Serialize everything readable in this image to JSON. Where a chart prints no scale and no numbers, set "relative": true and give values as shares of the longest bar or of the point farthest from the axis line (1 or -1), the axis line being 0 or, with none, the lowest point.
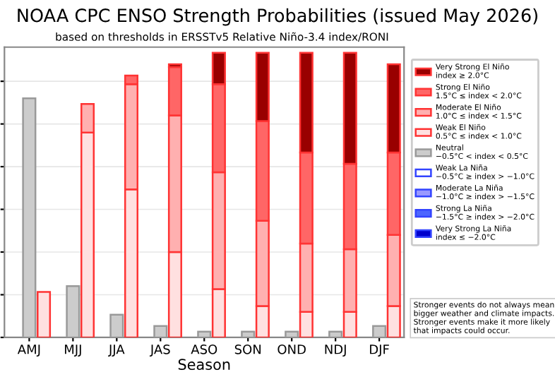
{
  "chart_data": {
    "type": "bar",
    "title": "NOAA CPC ENSO Strength Probabilities (issued May 2026)",
    "subtitle": "based on thresholds in ERSSTv5 Relative Niño-3.4 index/RONI",
    "xlabel": "Season",
    "categories": [
      null,
      "AMJ",
      null,
      null,
      "MJJ",
      null,
      null,
      "JJA",
      null,
      null,
      "JAS",
      null,
      null,
      "ASO",
      null,
      null,
      "SON",
      null,
      null,
      "OND",
      null,
      null,
      "NDJ",
      null,
      null,
      "DJF",
      null
    ],
    "stacked": true,
    "relative": true,
    "grid": "y",
    "legend": "right",
    "series": [
      {
        "name": "Weak La Niña\n−0.5°C ≥ index > −1.0°C",
        "color": "#ffffff",
        "values": [
          0,
          null,
          null,
          0,
          null,
          null,
          0,
          null,
          null,
          0,
          null,
          null,
          0,
          null,
          null,
          0,
          null,
          null,
          0,
          null,
          null,
          0,
          null,
          null,
          0,
          null,
          null
        ]
      },
      {
        "name": "Moderate La Niña\n−1.0°C ≥ index > −1.5°C",
        "color": "#9999ff",
        "values": [
          0,
          null,
          null,
          0,
          null,
          null,
          0,
          null,
          null,
          0,
          null,
          null,
          0,
          null,
          null,
          0,
          null,
          null,
          0,
          null,
          null,
          0,
          null,
          null,
          0,
          null,
          null
        ]
      },
      {
        "name": "Strong La Niña\n−1.5°C ≥ index > −2.0°C",
        "color": "#4d66ff",
        "values": [
          0,
          null,
          null,
          0,
          null,
          null,
          0,
          null,
          null,
          0,
          null,
          null,
          0,
          null,
          null,
          0,
          null,
          null,
          0,
          null,
          null,
          0,
          null,
          null,
          0,
          null,
          null
        ]
      },
      {
        "name": "Very Strong La Niña\nindex ≤ −2.0°C",
        "color": "#0000cc",
        "values": [
          0,
          null,
          null,
          0,
          null,
          null,
          0,
          null,
          null,
          0,
          null,
          null,
          0,
          null,
          null,
          0,
          null,
          null,
          0,
          null,
          null,
          0,
          null,
          null,
          0,
          null,
          null
        ]
      },
      {
        "name": "Neutral\n−0.5°C < index < 0.5°C",
        "color": "#cccccc",
        "values": [
          null,
          0.84,
          null,
          null,
          0.18,
          null,
          null,
          0.08,
          null,
          null,
          0.04,
          null,
          null,
          0.02,
          null,
          null,
          0.02,
          null,
          null,
          0.02,
          null,
          null,
          0.02,
          null,
          null,
          0.04,
          null
        ]
      },
      {
        "name": "Weak El Niño\n0.5°C ≤ index < 1.0°C",
        "color": "#ffe0e0",
        "values": [
          null,
          null,
          0.16,
          null,
          null,
          0.72,
          null,
          null,
          0.52,
          null,
          null,
          0.3,
          null,
          null,
          0.17,
          null,
          null,
          0.11,
          null,
          null,
          0.09,
          null,
          null,
          0.09,
          null,
          null,
          0.11
        ]
      },
      {
        "name": "Moderate El Niño\n1.0°C ≤ index < 1.5°C",
        "color": "#ffb0b0",
        "values": [
          null,
          null,
          0,
          null,
          null,
          0.1,
          null,
          null,
          0.37,
          null,
          null,
          0.48,
          null,
          null,
          0.41,
          null,
          null,
          0.3,
          null,
          null,
          0.24,
          null,
          null,
          0.22,
          null,
          null,
          0.25
        ]
      },
      {
        "name": "Strong El Niño\n1.5°C ≤ index < 2.0°C",
        "color": "#ff6666",
        "values": [
          null,
          null,
          0,
          null,
          null,
          0,
          null,
          null,
          0.03,
          null,
          null,
          0.17,
          null,
          null,
          0.31,
          null,
          null,
          0.35,
          null,
          null,
          0.32,
          null,
          null,
          0.3,
          null,
          null,
          0.29
        ]
      },
      {
        "name": "Very Strong El Niño\nindex ≥ 2.0°C",
        "color": "#990000",
        "values": [
          null,
          null,
          0,
          null,
          null,
          0,
          null,
          null,
          0,
          null,
          null,
          0.01,
          null,
          null,
          0.11,
          null,
          null,
          0.24,
          null,
          null,
          0.35,
          null,
          null,
          0.39,
          null,
          null,
          0.31
        ]
      }
    ],
    "annotations": [
      "Stronger events do not always mean bigger weather and climate impacts. Stronger events make it more likely that impacts could occur."
    ]
  }
}
